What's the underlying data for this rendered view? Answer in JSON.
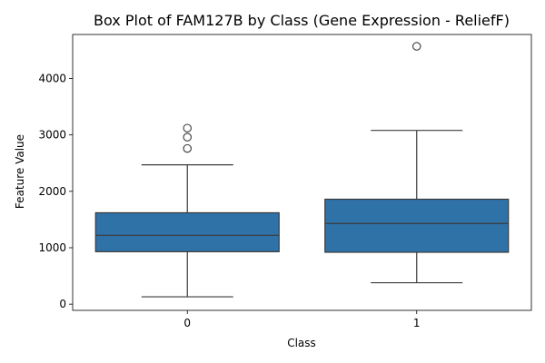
{
  "chart_data": {
    "type": "box",
    "title": "Box Plot of FAM127B by Class (Gene Expression - ReliefF)",
    "xlabel": "Class",
    "ylabel": "Feature Value",
    "categories": [
      "0",
      "1"
    ],
    "y_ticks": [
      0,
      1000,
      2000,
      3000,
      4000
    ],
    "ylim": [
      -110,
      4780
    ],
    "grid": false,
    "box_color": "#2f72a8",
    "series": [
      {
        "category": "0",
        "whisker_low": 130,
        "q1": 930,
        "median": 1220,
        "q3": 1620,
        "whisker_high": 2470,
        "outliers": [
          2760,
          2960,
          3120
        ]
      },
      {
        "category": "1",
        "whisker_low": 380,
        "q1": 920,
        "median": 1430,
        "q3": 1860,
        "whisker_high": 3080,
        "outliers": [
          4570
        ]
      }
    ]
  }
}
